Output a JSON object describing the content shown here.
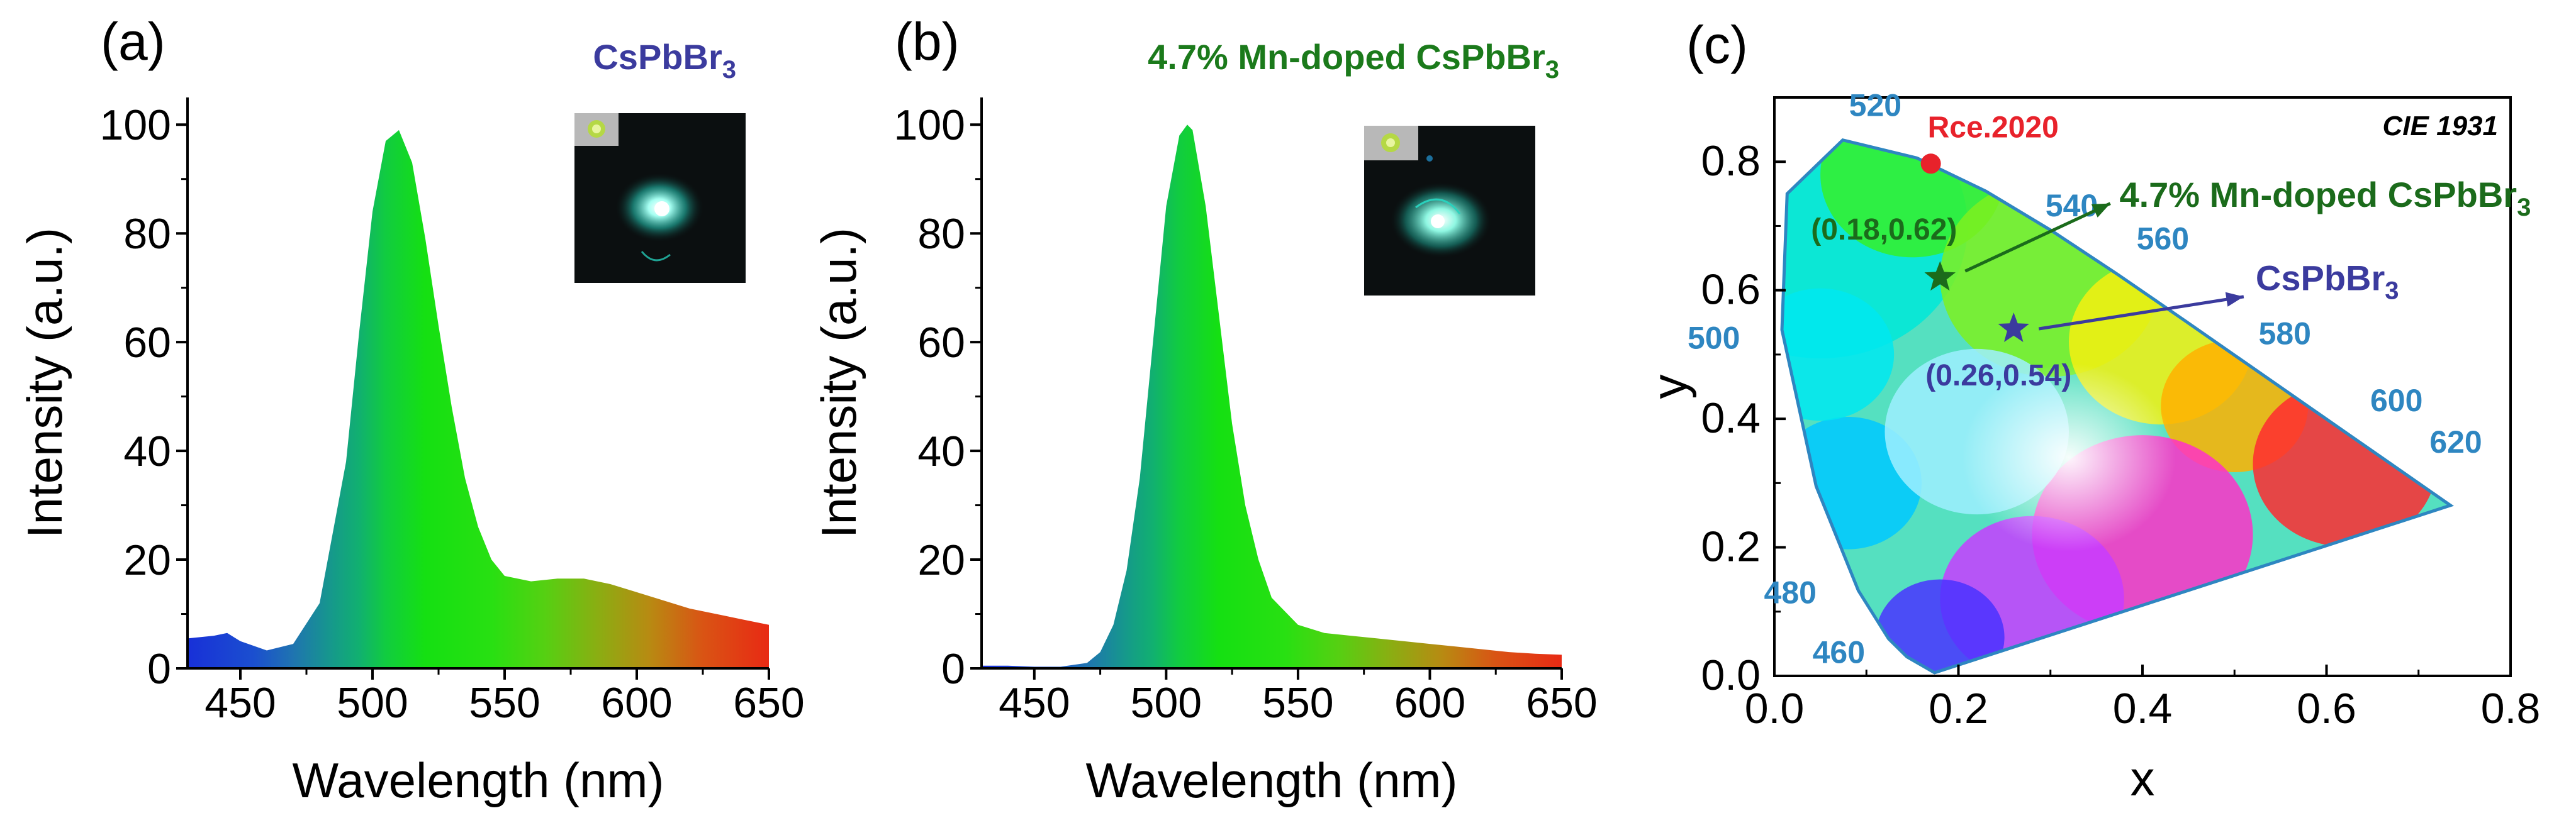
{
  "figure": {
    "panels": [
      {
        "label": "(a)",
        "sample_label": "CsPbBr",
        "sample_sub": "3",
        "sample_color": "#3b3b9e"
      },
      {
        "label": "(b)",
        "sample_label": "4.7% Mn-doped CsPbBr",
        "sample_sub": "3",
        "sample_color": "#1b7a1b"
      },
      {
        "label": "(c)",
        "title": "CIE 1931"
      }
    ]
  },
  "chart_data": [
    {
      "type": "area",
      "panel": "(a)",
      "title": "CsPbBr3",
      "xlabel": "Wavelength (nm)",
      "ylabel": "Intensity (a.u.)",
      "xlim": [
        430,
        650
      ],
      "ylim": [
        0,
        105
      ],
      "xticks": [
        450,
        500,
        550,
        600,
        650
      ],
      "yticks": [
        0,
        20,
        40,
        60,
        80,
        100
      ],
      "fill": "spectral color gradient",
      "x": [
        430,
        440,
        445,
        450,
        460,
        470,
        480,
        490,
        495,
        500,
        505,
        510,
        515,
        520,
        525,
        530,
        535,
        540,
        545,
        550,
        560,
        570,
        580,
        590,
        600,
        610,
        620,
        630,
        640,
        650
      ],
      "y": [
        5.5,
        6.0,
        6.5,
        5.0,
        3.3,
        4.5,
        12,
        38,
        62,
        84,
        97,
        99,
        93,
        79,
        63,
        48,
        35,
        26,
        20,
        17,
        16,
        16.5,
        16.5,
        15.5,
        14,
        12.5,
        11,
        10,
        9,
        8
      ]
    },
    {
      "type": "area",
      "panel": "(b)",
      "title": "4.7% Mn-doped CsPbBr3",
      "xlabel": "Wavelength (nm)",
      "ylabel": "Intensity (a.u.)",
      "xlim": [
        430,
        650
      ],
      "ylim": [
        0,
        105
      ],
      "xticks": [
        450,
        500,
        550,
        600,
        650
      ],
      "yticks": [
        0,
        20,
        40,
        60,
        80,
        100
      ],
      "fill": "spectral color gradient",
      "x": [
        430,
        440,
        450,
        460,
        470,
        475,
        480,
        485,
        490,
        495,
        500,
        505,
        508,
        510,
        515,
        520,
        525,
        530,
        535,
        540,
        550,
        560,
        570,
        580,
        590,
        600,
        610,
        620,
        630,
        640,
        650
      ],
      "y": [
        0.5,
        0.5,
        0.3,
        0.3,
        1,
        3,
        8,
        18,
        35,
        60,
        85,
        98,
        100,
        99,
        85,
        65,
        45,
        30,
        20,
        13,
        8,
        6.5,
        6,
        5.5,
        5,
        4.5,
        4,
        3.5,
        3,
        2.7,
        2.5
      ]
    },
    {
      "type": "scatter",
      "panel": "(c)",
      "title": "CIE 1931",
      "xlabel": "x",
      "ylabel": "y",
      "xlim": [
        0,
        0.8
      ],
      "ylim": [
        0,
        0.9
      ],
      "xticks": [
        0.0,
        0.2,
        0.4,
        0.6,
        0.8
      ],
      "yticks": [
        0.0,
        0.2,
        0.4,
        0.6,
        0.8
      ],
      "locus": [
        [
          0.1741,
          0.005
        ],
        [
          0.144,
          0.0297
        ],
        [
          0.1241,
          0.0578
        ],
        [
          0.0913,
          0.1327
        ],
        [
          0.0454,
          0.295
        ],
        [
          0.0082,
          0.5384
        ],
        [
          0.0139,
          0.7502
        ],
        [
          0.0743,
          0.8338
        ],
        [
          0.1547,
          0.8059
        ],
        [
          0.2296,
          0.7543
        ],
        [
          0.3016,
          0.6923
        ],
        [
          0.3731,
          0.6245
        ],
        [
          0.4441,
          0.5547
        ],
        [
          0.5125,
          0.4866
        ],
        [
          0.5752,
          0.4242
        ],
        [
          0.627,
          0.3725
        ],
        [
          0.6658,
          0.334
        ],
        [
          0.7347,
          0.2653
        ]
      ],
      "wavelength_labels": [
        {
          "text": "460",
          "x": 0.144,
          "y": 0.0297
        },
        {
          "text": "480",
          "x": 0.0913,
          "y": 0.1327
        },
        {
          "text": "500",
          "x": 0.0082,
          "y": 0.5384
        },
        {
          "text": "520",
          "x": 0.0743,
          "y": 0.8338
        },
        {
          "text": "540",
          "x": 0.2296,
          "y": 0.7543
        },
        {
          "text": "560",
          "x": 0.3731,
          "y": 0.6245
        },
        {
          "text": "580",
          "x": 0.5125,
          "y": 0.4866
        },
        {
          "text": "600",
          "x": 0.627,
          "y": 0.3725
        },
        {
          "text": "620",
          "x": 0.6915,
          "y": 0.3083
        }
      ],
      "points": [
        {
          "name": "Rce.2020",
          "x": 0.17,
          "y": 0.797,
          "marker": "circle",
          "color": "#e8222b",
          "label": "Rce.2020"
        },
        {
          "name": "4.7% Mn-doped CsPbBr3",
          "x": 0.18,
          "y": 0.62,
          "marker": "star",
          "color": "#1b6b1b",
          "label": "(0.18,0.62)"
        },
        {
          "name": "CsPbBr3",
          "x": 0.26,
          "y": 0.54,
          "marker": "star",
          "color": "#3b3b9e",
          "label": "(0.26,0.54)"
        }
      ],
      "arrow_labels": {
        "doped": {
          "text": "4.7% Mn-doped CsPbBr",
          "sub": "3"
        },
        "pure": {
          "text": "CsPbBr",
          "sub": "3"
        }
      }
    }
  ]
}
